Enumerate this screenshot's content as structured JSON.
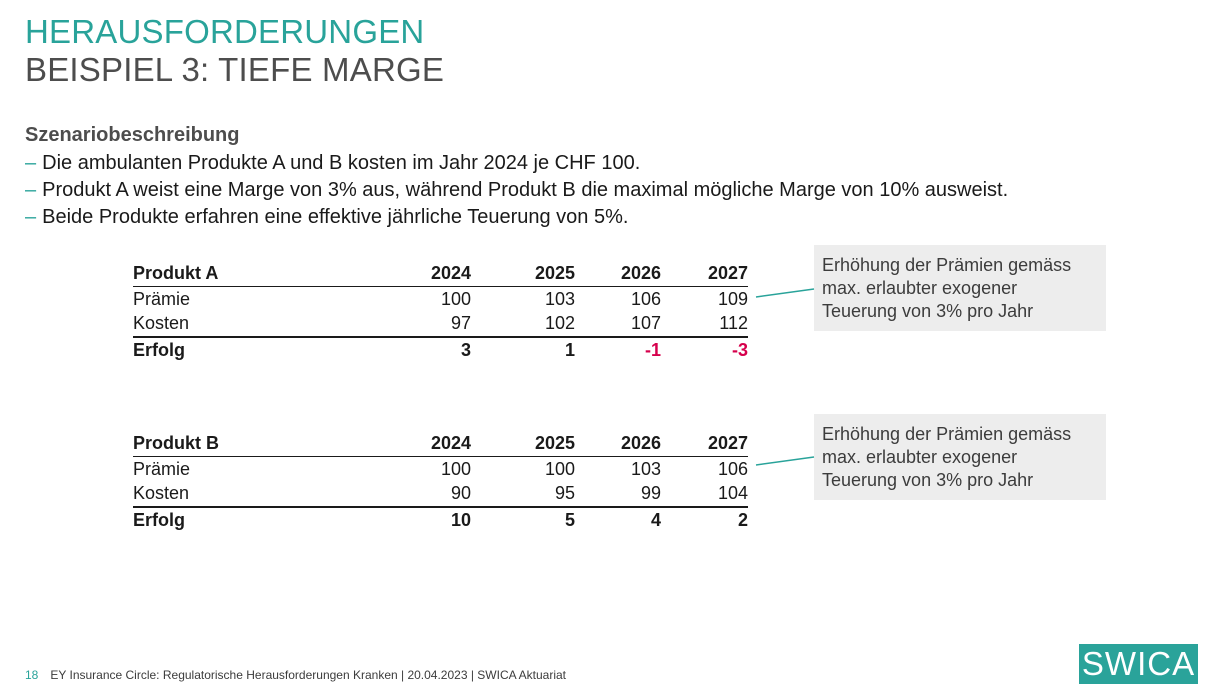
{
  "title": {
    "line1": "HERAUSFORDERUNGEN",
    "line2": "BEISPIEL 3: TIEFE MARGE"
  },
  "scenario": {
    "heading": "Szenariobeschreibung",
    "bullet_marker": "–",
    "bullets": [
      "Die ambulanten Produkte A und B kosten im Jahr 2024 je CHF 100.",
      "Produkt A weist eine Marge von 3% aus, während Produkt B die maximal mögliche Marge von 10% ausweist.",
      "Beide Produkte erfahren eine effektive jährliche Teuerung von 5%."
    ]
  },
  "tables": [
    {
      "name": "Produkt A",
      "years": [
        "2024",
        "2025",
        "2026",
        "2027"
      ],
      "rows": [
        {
          "label": "Prämie",
          "values": [
            "100",
            "103",
            "106",
            "109"
          ]
        },
        {
          "label": "Kosten",
          "values": [
            "97",
            "102",
            "107",
            "112"
          ]
        },
        {
          "label": "Erfolg",
          "values": [
            "3",
            "1",
            "-1",
            "-3"
          ]
        }
      ],
      "note": [
        "Erhöhung der Prämien gemäss",
        "max. erlaubter exogener",
        "Teuerung von 3% pro Jahr"
      ]
    },
    {
      "name": "Produkt B",
      "years": [
        "2024",
        "2025",
        "2026",
        "2027"
      ],
      "rows": [
        {
          "label": "Prämie",
          "values": [
            "100",
            "100",
            "103",
            "106"
          ]
        },
        {
          "label": "Kosten",
          "values": [
            "90",
            "95",
            "99",
            "104"
          ]
        },
        {
          "label": "Erfolg",
          "values": [
            "10",
            "5",
            "4",
            "2"
          ]
        }
      ],
      "note": [
        "Erhöhung der Prämien gemäss",
        "max. erlaubter exogener",
        "Teuerung von 3% pro Jahr"
      ]
    }
  ],
  "colors": {
    "accent": "#29a39a",
    "negative": "#d6004c",
    "note_background": "#ededed"
  },
  "footer": {
    "page_number": "18",
    "text": "EY Insurance Circle: Regulatorische Herausforderungen Kranken | 20.04.2023 | SWICA Aktuariat"
  },
  "logo": {
    "text": "SWICA"
  }
}
